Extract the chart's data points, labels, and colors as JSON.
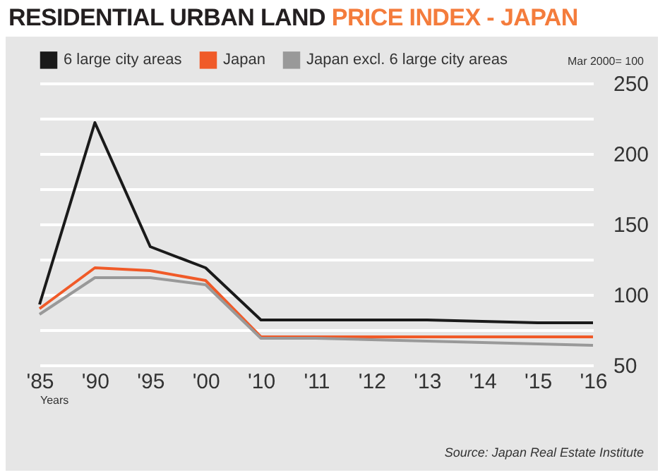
{
  "chart_data": {
    "type": "line",
    "title": "RESIDENTIAL URBAN LAND PRICE INDEX - JAPAN",
    "xlabel": "Years",
    "categories": [
      "'85",
      "'90",
      "'95",
      "'00",
      "'10",
      "'11",
      "'12",
      "'13",
      "'14",
      "'15",
      "'16"
    ],
    "series": [
      {
        "name": "6 large city areas",
        "color": "#1a1a1a",
        "values": [
          93,
          222,
          134,
          119,
          82,
          82,
          82,
          82,
          81,
          80,
          80
        ]
      },
      {
        "name": "Japan",
        "color": "#f05a28",
        "values": [
          90,
          119,
          117,
          110,
          70,
          70,
          70,
          70,
          70,
          70,
          70
        ]
      },
      {
        "name": "Japan excl. 6 large city areas",
        "color": "#999999",
        "values": [
          86,
          112,
          112,
          107,
          69,
          69,
          68,
          67,
          66,
          65,
          64
        ]
      }
    ],
    "ylim": [
      50,
      250
    ],
    "yticks": [
      50,
      {
        "value": 75,
        "label": null
      },
      100,
      {
        "value": 125,
        "label": null
      },
      150,
      {
        "value": 175,
        "label": null
      },
      200,
      {
        "value": 225,
        "label": null
      },
      250
    ],
    "grid": "y",
    "legend": "top left",
    "marker": "none",
    "line_style": "solid",
    "annotations": [
      "Mar 2000= 100",
      "Source: Japan Real Estate Institute"
    ]
  }
}
